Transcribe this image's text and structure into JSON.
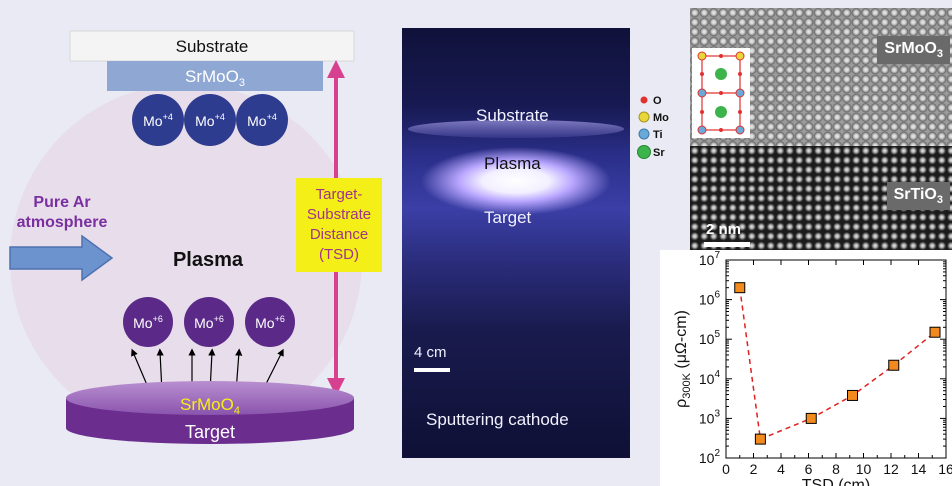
{
  "schematic": {
    "substrate_label": "Substrate",
    "film_label": "SrMoO3",
    "plasma_label": "Plasma",
    "ions_top": [
      "Mo+4",
      "Mo+4",
      "Mo+4"
    ],
    "ions_bottom": [
      "Mo+6",
      "Mo+6",
      "Mo+6"
    ],
    "atmosphere_label": [
      "Pure Ar",
      "atmosphere"
    ],
    "tsd_label": [
      "Target-",
      "Substrate",
      "Distance",
      "(TSD)"
    ],
    "target_surface_label": "SrMoO4",
    "target_label": "Target",
    "colors": {
      "ion": "#2e3c8f",
      "ion_bottom": "#5b2a88",
      "tsd_arrow": "#d6408f",
      "tsd_box": "#f5ef18",
      "atmosphere": "#7a2fa0",
      "target": "#6b2d8e",
      "surface_text": "#f5ef18",
      "plasma": "#e8dcea",
      "film": "#8fa8d3"
    }
  },
  "photo": {
    "substrate": "Substrate",
    "plasma": "Plasma",
    "target": "Target",
    "cathode": "Sputtering cathode",
    "scale_bar": "4 cm"
  },
  "stem": {
    "top_label": "SrMoO3",
    "bottom_label": "SrTiO3",
    "scale_bar": "2 nm",
    "legend": [
      {
        "symbol": "O",
        "color": "#e03030"
      },
      {
        "symbol": "Mo",
        "color": "#e8d63a"
      },
      {
        "symbol": "Ti",
        "color": "#6aa8d8"
      },
      {
        "symbol": "Sr",
        "color": "#3cb44b"
      }
    ]
  },
  "chart_data": {
    "type": "scatter",
    "xlabel": "TSD (cm)",
    "ylabel": "ρ300K (μΩ-cm)",
    "x_ticks": [
      0,
      2,
      4,
      6,
      8,
      10,
      12,
      14,
      16
    ],
    "y_ticks": [
      "10^2",
      "10^3",
      "10^4",
      "10^5",
      "10^6",
      "10^7"
    ],
    "xlim": [
      0,
      16
    ],
    "ylim": [
      100,
      10000000
    ],
    "y_scale": "log",
    "points": [
      {
        "x": 1.0,
        "y": 2000000
      },
      {
        "x": 2.5,
        "y": 300
      },
      {
        "x": 6.2,
        "y": 1000
      },
      {
        "x": 9.2,
        "y": 3800
      },
      {
        "x": 12.2,
        "y": 22000
      },
      {
        "x": 15.2,
        "y": 150000
      }
    ],
    "marker_color": "#f28a1e",
    "line_color": "#e02020",
    "line_style": "dashed"
  }
}
